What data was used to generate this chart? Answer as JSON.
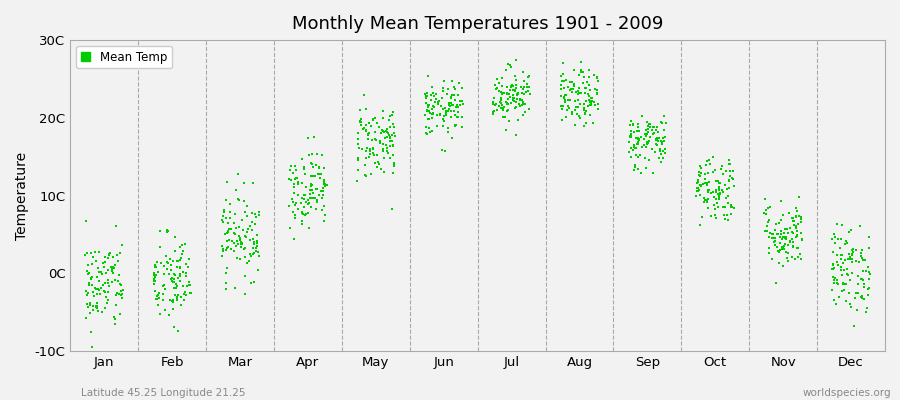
{
  "title": "Monthly Mean Temperatures 1901 - 2009",
  "ylabel": "Temperature",
  "ylim": [
    -10,
    30
  ],
  "yticks": [
    -10,
    0,
    10,
    20,
    30
  ],
  "ytick_labels": [
    "-10C",
    "0C",
    "10C",
    "20C",
    "30C"
  ],
  "months": [
    "Jan",
    "Feb",
    "Mar",
    "Apr",
    "May",
    "Jun",
    "Jul",
    "Aug",
    "Sep",
    "Oct",
    "Nov",
    "Dec"
  ],
  "dot_color": "#00CC00",
  "dot_size": 2.5,
  "bg_color": "#f2f2f2",
  "plot_bg_color": "#f2f2f2",
  "grid_color": "#777777",
  "legend_label": "Mean Temp",
  "footnote_left": "Latitude 45.25 Longitude 21.25",
  "footnote_right": "worldspecies.org",
  "mean_temps": [
    -1.5,
    -1.0,
    5.0,
    11.0,
    17.0,
    21.0,
    23.0,
    22.5,
    17.0,
    11.0,
    5.0,
    0.5
  ],
  "std_temps": [
    3.0,
    3.0,
    2.8,
    2.5,
    2.5,
    1.8,
    1.8,
    1.8,
    1.8,
    2.2,
    2.2,
    2.8
  ],
  "n_years": 109
}
